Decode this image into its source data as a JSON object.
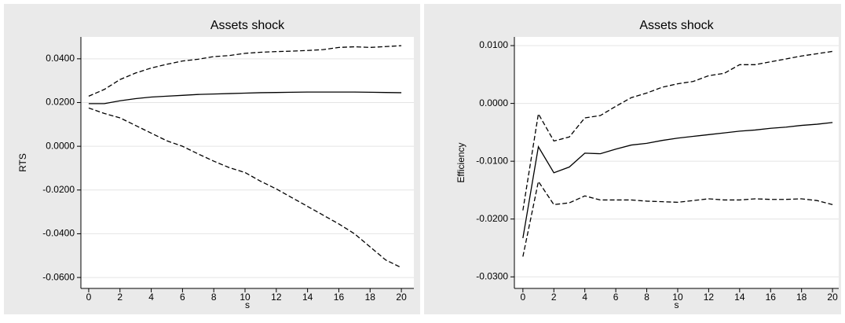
{
  "chart_data": [
    {
      "type": "line",
      "title": "Assets shock",
      "xlabel": "s",
      "ylabel": "RTS",
      "x": [
        0,
        1,
        2,
        3,
        4,
        5,
        6,
        7,
        8,
        9,
        10,
        11,
        12,
        13,
        14,
        15,
        16,
        17,
        18,
        19,
        20
      ],
      "xlim": [
        -0.5,
        20.8
      ],
      "xticks": [
        0,
        2,
        4,
        6,
        8,
        10,
        12,
        14,
        16,
        18,
        20
      ],
      "ylim": [
        -0.065,
        0.05
      ],
      "yticks": [
        {
          "value": -0.06,
          "label": "-0.0600"
        },
        {
          "value": -0.04,
          "label": "-0.0400"
        },
        {
          "value": -0.02,
          "label": "-0.0200"
        },
        {
          "value": 0,
          "label": "0.0000"
        },
        {
          "value": 0.02,
          "label": "0.0200"
        },
        {
          "value": 0.04,
          "label": "0.0400"
        }
      ],
      "grid": true,
      "series": [
        {
          "color": "#000000",
          "style": "solid",
          "values": [
            0.0195,
            0.0195,
            0.0208,
            0.0218,
            0.0225,
            0.0229,
            0.0233,
            0.0237,
            0.0239,
            0.0241,
            0.0243,
            0.0245,
            0.0246,
            0.0247,
            0.0248,
            0.0248,
            0.0248,
            0.0248,
            0.0247,
            0.0246,
            0.0245
          ]
        },
        {
          "color": "#000000",
          "style": "dashed",
          "values": [
            0.0229,
            0.026,
            0.0305,
            0.0335,
            0.0358,
            0.0375,
            0.039,
            0.0398,
            0.041,
            0.0415,
            0.0425,
            0.043,
            0.0433,
            0.0435,
            0.0438,
            0.0442,
            0.0452,
            0.0455,
            0.0452,
            0.0456,
            0.046
          ]
        },
        {
          "color": "#000000",
          "style": "dashed",
          "values": [
            0.0175,
            0.015,
            0.013,
            0.0095,
            0.006,
            0.0025,
            0.0,
            -0.0035,
            -0.0068,
            -0.0098,
            -0.012,
            -0.016,
            -0.0195,
            -0.0235,
            -0.0275,
            -0.0315,
            -0.0355,
            -0.04,
            -0.046,
            -0.052,
            -0.0555
          ]
        }
      ]
    },
    {
      "type": "line",
      "title": "Assets shock",
      "xlabel": "s",
      "ylabel": "Efficiency",
      "x": [
        0,
        1,
        2,
        3,
        4,
        5,
        6,
        7,
        8,
        9,
        10,
        11,
        12,
        13,
        14,
        15,
        16,
        17,
        18,
        19,
        20
      ],
      "xlim": [
        -0.55,
        20.4
      ],
      "xticks": [
        0,
        2,
        4,
        6,
        8,
        10,
        12,
        14,
        16,
        18,
        20
      ],
      "ylim": [
        -0.032,
        0.0115
      ],
      "yticks": [
        {
          "value": -0.03,
          "label": "-0.0300"
        },
        {
          "value": -0.02,
          "label": "-0.0200"
        },
        {
          "value": -0.01,
          "label": "-0.0100"
        },
        {
          "value": 0,
          "label": "0.0000"
        },
        {
          "value": 0.01,
          "label": "0.0100"
        }
      ],
      "grid": true,
      "series": [
        {
          "color": "#000000",
          "style": "solid",
          "values": [
            -0.0233,
            -0.0075,
            -0.012,
            -0.011,
            -0.0086,
            -0.0087,
            -0.0079,
            -0.0072,
            -0.0069,
            -0.0064,
            -0.006,
            -0.0057,
            -0.0054,
            -0.0051,
            -0.0048,
            -0.0046,
            -0.0043,
            -0.0041,
            -0.0038,
            -0.0036,
            -0.0033
          ]
        },
        {
          "color": "#000000",
          "style": "dashed",
          "values": [
            -0.0185,
            -0.0018,
            -0.0065,
            -0.0058,
            -0.0025,
            -0.0021,
            -0.0005,
            0.001,
            0.0018,
            0.0028,
            0.0034,
            0.0038,
            0.0048,
            0.0052,
            0.0067,
            0.0067,
            0.0072,
            0.0077,
            0.0082,
            0.0086,
            0.009
          ]
        },
        {
          "color": "#000000",
          "style": "dashed",
          "values": [
            -0.0265,
            -0.0135,
            -0.0175,
            -0.0172,
            -0.016,
            -0.0167,
            -0.0167,
            -0.0167,
            -0.0169,
            -0.017,
            -0.0171,
            -0.0168,
            -0.0165,
            -0.0167,
            -0.0167,
            -0.0165,
            -0.0166,
            -0.0166,
            -0.0165,
            -0.0168,
            -0.0175
          ]
        }
      ]
    }
  ]
}
